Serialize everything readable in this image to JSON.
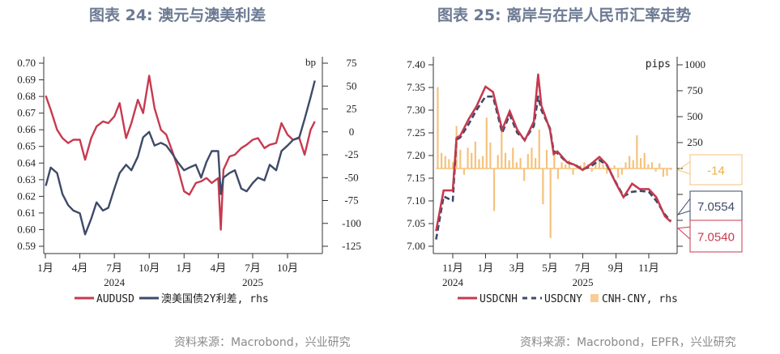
{
  "titles": [
    "图表 24: 澳元与澳美利差",
    "图表 25: 离岸与在岸人民币汇率走势"
  ],
  "sources": [
    "资料来源：Macrobond，兴业研究",
    "资料来源：Macrobond，EPFR，兴业研究"
  ],
  "colors": {
    "red": "#c73a4f",
    "navy": "#3e4a68",
    "orange": "#f5c27c",
    "title": "#6c7a93"
  },
  "chart_data": [
    {
      "type": "line",
      "title": "图表 24: 澳元与澳美利差",
      "y_left": {
        "range": [
          0.59,
          0.7
        ],
        "ticks": [
          "0.70",
          "0.69",
          "0.68",
          "0.67",
          "0.66",
          "0.65",
          "0.64",
          "0.63",
          "0.62",
          "0.61",
          "0.60",
          "0.59"
        ]
      },
      "y_right": {
        "label": "bp",
        "range": [
          -125,
          75
        ],
        "ticks": [
          "75",
          "50",
          "25",
          "0",
          "-25",
          "-50",
          "-75",
          "-100",
          "-125"
        ]
      },
      "x_ticks": [
        {
          "date": "2024-01-01",
          "label": "1月"
        },
        {
          "date": "2024-04-01",
          "label": "4月"
        },
        {
          "date": "2024-07-01",
          "label": "7月"
        },
        {
          "date": "2024-10-01",
          "label": "10月"
        },
        {
          "date": "2025-01-01",
          "label": "1月"
        },
        {
          "date": "2025-04-01",
          "label": "4月"
        },
        {
          "date": "2025-07-01",
          "label": "7月"
        },
        {
          "date": "2025-10-01",
          "label": "10月"
        }
      ],
      "years": [
        {
          "date": "2024-07-01",
          "label": "2024"
        },
        {
          "date": "2025-07-01",
          "label": "2025"
        }
      ],
      "x": [
        "2024-01-02",
        "2024-01-15",
        "2024-02-01",
        "2024-02-15",
        "2024-03-01",
        "2024-03-15",
        "2024-04-01",
        "2024-04-15",
        "2024-05-01",
        "2024-05-15",
        "2024-06-01",
        "2024-06-15",
        "2024-07-01",
        "2024-07-15",
        "2024-08-01",
        "2024-08-15",
        "2024-09-01",
        "2024-09-15",
        "2024-10-01",
        "2024-10-15",
        "2024-11-01",
        "2024-11-15",
        "2024-12-01",
        "2024-12-15",
        "2025-01-01",
        "2025-01-15",
        "2025-02-01",
        "2025-02-15",
        "2025-03-01",
        "2025-03-15",
        "2025-04-01",
        "2025-04-08",
        "2025-04-15",
        "2025-05-01",
        "2025-05-15",
        "2025-06-01",
        "2025-06-15",
        "2025-07-01",
        "2025-07-15",
        "2025-08-01",
        "2025-08-15",
        "2025-09-01",
        "2025-09-15",
        "2025-10-01",
        "2025-10-15",
        "2025-11-01",
        "2025-11-15",
        "2025-12-01",
        "2025-12-12"
      ],
      "series": [
        {
          "name": "AUDUSD",
          "axis": "left",
          "color": "#c73a4f",
          "style": "solid",
          "values": [
            0.6805,
            0.672,
            0.66,
            0.655,
            0.652,
            0.654,
            0.654,
            0.642,
            0.655,
            0.662,
            0.665,
            0.664,
            0.668,
            0.676,
            0.655,
            0.664,
            0.678,
            0.67,
            0.6925,
            0.673,
            0.66,
            0.657,
            0.647,
            0.6375,
            0.623,
            0.621,
            0.628,
            0.629,
            0.631,
            0.628,
            0.631,
            0.6,
            0.636,
            0.644,
            0.645,
            0.649,
            0.651,
            0.654,
            0.655,
            0.649,
            0.651,
            0.652,
            0.664,
            0.657,
            0.654,
            0.655,
            0.645,
            0.66,
            0.665
          ]
        },
        {
          "name": "澳美国债2Y利差, rhs",
          "axis": "right",
          "color": "#3e4a68",
          "style": "solid",
          "values": [
            -59,
            -39,
            -45,
            -68,
            -80,
            -86,
            -89,
            -112,
            -95,
            -77,
            -86,
            -83,
            -62,
            -45,
            -36,
            -42,
            -27,
            -6,
            0,
            -15,
            -12,
            -15,
            -24,
            -33,
            -42,
            -39,
            -36,
            -50,
            -33,
            -21,
            -21,
            -68,
            -50,
            -45,
            -42,
            -62,
            -65,
            -56,
            -50,
            -53,
            -36,
            -42,
            -21,
            -15,
            -9,
            -6,
            14,
            38,
            56
          ]
        }
      ],
      "legend": [
        "AUDUSD",
        "澳美国债2Y利差, rhs"
      ]
    },
    {
      "type": "line",
      "title": "图表 25: 离岸与在岸人民币汇率走势",
      "y_left": {
        "range": [
          7.0,
          7.4
        ],
        "ticks": [
          "7.40",
          "7.35",
          "7.30",
          "7.25",
          "7.20",
          "7.15",
          "7.10",
          "7.05",
          "7.00"
        ]
      },
      "y_right": {
        "label": "pips",
        "range": [
          -750,
          1000
        ],
        "ticks": [
          "1000",
          "750",
          "500",
          "250",
          "",
          "",
          "",
          ""
        ]
      },
      "x_ticks": [
        {
          "date": "2024-11-01",
          "label": "11月"
        },
        {
          "date": "2025-01-01",
          "label": "1月"
        },
        {
          "date": "2025-03-01",
          "label": "3月"
        },
        {
          "date": "2025-05-01",
          "label": "5月"
        },
        {
          "date": "2025-07-01",
          "label": "7月"
        },
        {
          "date": "2025-09-01",
          "label": "9月"
        },
        {
          "date": "2025-11-01",
          "label": "11月"
        }
      ],
      "years": [
        {
          "date": "2024-11-01",
          "label": "2024"
        },
        {
          "date": "2025-07-01",
          "label": "2025"
        }
      ],
      "x": [
        "2024-10-01",
        "2024-10-15",
        "2024-11-01",
        "2024-11-08",
        "2024-11-15",
        "2024-12-01",
        "2024-12-15",
        "2025-01-01",
        "2025-01-15",
        "2025-02-01",
        "2025-02-15",
        "2025-03-01",
        "2025-03-15",
        "2025-04-01",
        "2025-04-09",
        "2025-04-15",
        "2025-05-01",
        "2025-05-08",
        "2025-05-15",
        "2025-06-01",
        "2025-06-15",
        "2025-07-01",
        "2025-07-15",
        "2025-08-01",
        "2025-08-15",
        "2025-09-01",
        "2025-09-15",
        "2025-10-01",
        "2025-10-15",
        "2025-11-01",
        "2025-11-15",
        "2025-12-01",
        "2025-12-12"
      ],
      "series": [
        {
          "name": "USDCNH",
          "axis": "left",
          "color": "#c73a4f",
          "style": "solid",
          "values": [
            7.0335,
            7.123,
            7.123,
            7.239,
            7.244,
            7.281,
            7.308,
            7.352,
            7.34,
            7.257,
            7.298,
            7.257,
            7.233,
            7.275,
            7.379,
            7.31,
            7.257,
            7.203,
            7.209,
            7.186,
            7.18,
            7.168,
            7.18,
            7.197,
            7.18,
            7.138,
            7.108,
            7.138,
            7.126,
            7.126,
            7.108,
            7.066,
            7.054
          ]
        },
        {
          "name": "USDCNY",
          "axis": "left",
          "color": "#3e4a68",
          "style": "dashed",
          "values": [
            7.015,
            7.11,
            7.1,
            7.235,
            7.24,
            7.27,
            7.3,
            7.33,
            7.33,
            7.25,
            7.29,
            7.25,
            7.235,
            7.265,
            7.33,
            7.3,
            7.26,
            7.21,
            7.205,
            7.185,
            7.18,
            7.17,
            7.175,
            7.19,
            7.178,
            7.14,
            7.11,
            7.12,
            7.122,
            7.12,
            7.1,
            7.07,
            7.0554
          ]
        }
      ],
      "bars": {
        "name": "CNH-CNY, rhs",
        "axis": "right",
        "color": "#f5c27c",
        "x": [
          "2024-10-04",
          "2024-10-11",
          "2024-10-18",
          "2024-10-25",
          "2024-11-01",
          "2024-11-08",
          "2024-11-15",
          "2024-11-22",
          "2024-11-29",
          "2024-12-06",
          "2024-12-13",
          "2024-12-20",
          "2024-12-27",
          "2025-01-03",
          "2025-01-10",
          "2025-01-17",
          "2025-01-24",
          "2025-01-31",
          "2025-02-07",
          "2025-02-14",
          "2025-02-21",
          "2025-02-28",
          "2025-03-07",
          "2025-03-14",
          "2025-03-21",
          "2025-03-28",
          "2025-04-04",
          "2025-04-11",
          "2025-04-18",
          "2025-04-25",
          "2025-05-02",
          "2025-05-09",
          "2025-05-16",
          "2025-05-23",
          "2025-05-30",
          "2025-06-06",
          "2025-06-13",
          "2025-06-20",
          "2025-06-27",
          "2025-07-04",
          "2025-07-11",
          "2025-07-18",
          "2025-07-25",
          "2025-08-01",
          "2025-08-08",
          "2025-08-15",
          "2025-08-22",
          "2025-08-29",
          "2025-09-05",
          "2025-09-12",
          "2025-09-19",
          "2025-09-26",
          "2025-10-03",
          "2025-10-10",
          "2025-10-17",
          "2025-10-24",
          "2025-10-31",
          "2025-11-07",
          "2025-11-14",
          "2025-11-21",
          "2025-11-28",
          "2025-12-05",
          "2025-12-12"
        ],
        "values": [
          785,
          150,
          120,
          90,
          60,
          410,
          180,
          -60,
          200,
          150,
          260,
          90,
          120,
          490,
          250,
          -410,
          130,
          375,
          150,
          80,
          200,
          60,
          100,
          -120,
          140,
          200,
          100,
          375,
          -345,
          180,
          -670,
          150,
          -100,
          60,
          40,
          80,
          -60,
          40,
          30,
          60,
          40,
          -30,
          50,
          90,
          40,
          -50,
          -40,
          30,
          -90,
          -60,
          60,
          120,
          80,
          320,
          100,
          150,
          40,
          60,
          -30,
          50,
          -80,
          -70,
          -14
        ]
      },
      "callouts": [
        {
          "label": "-14",
          "value": -14,
          "axis": "right",
          "color": "#f0b040",
          "border": "#f5c27c"
        },
        {
          "label": "7.0554",
          "value": 7.0554,
          "axis": "left",
          "color": "#3e4a68",
          "border": "#3e4a68"
        },
        {
          "label": "7.0540",
          "value": 7.054,
          "axis": "left",
          "color": "#c73a4f",
          "border": "#c73a4f"
        }
      ],
      "legend": [
        "USDCNH",
        "USDCNY",
        "CNH-CNY, rhs"
      ]
    }
  ]
}
